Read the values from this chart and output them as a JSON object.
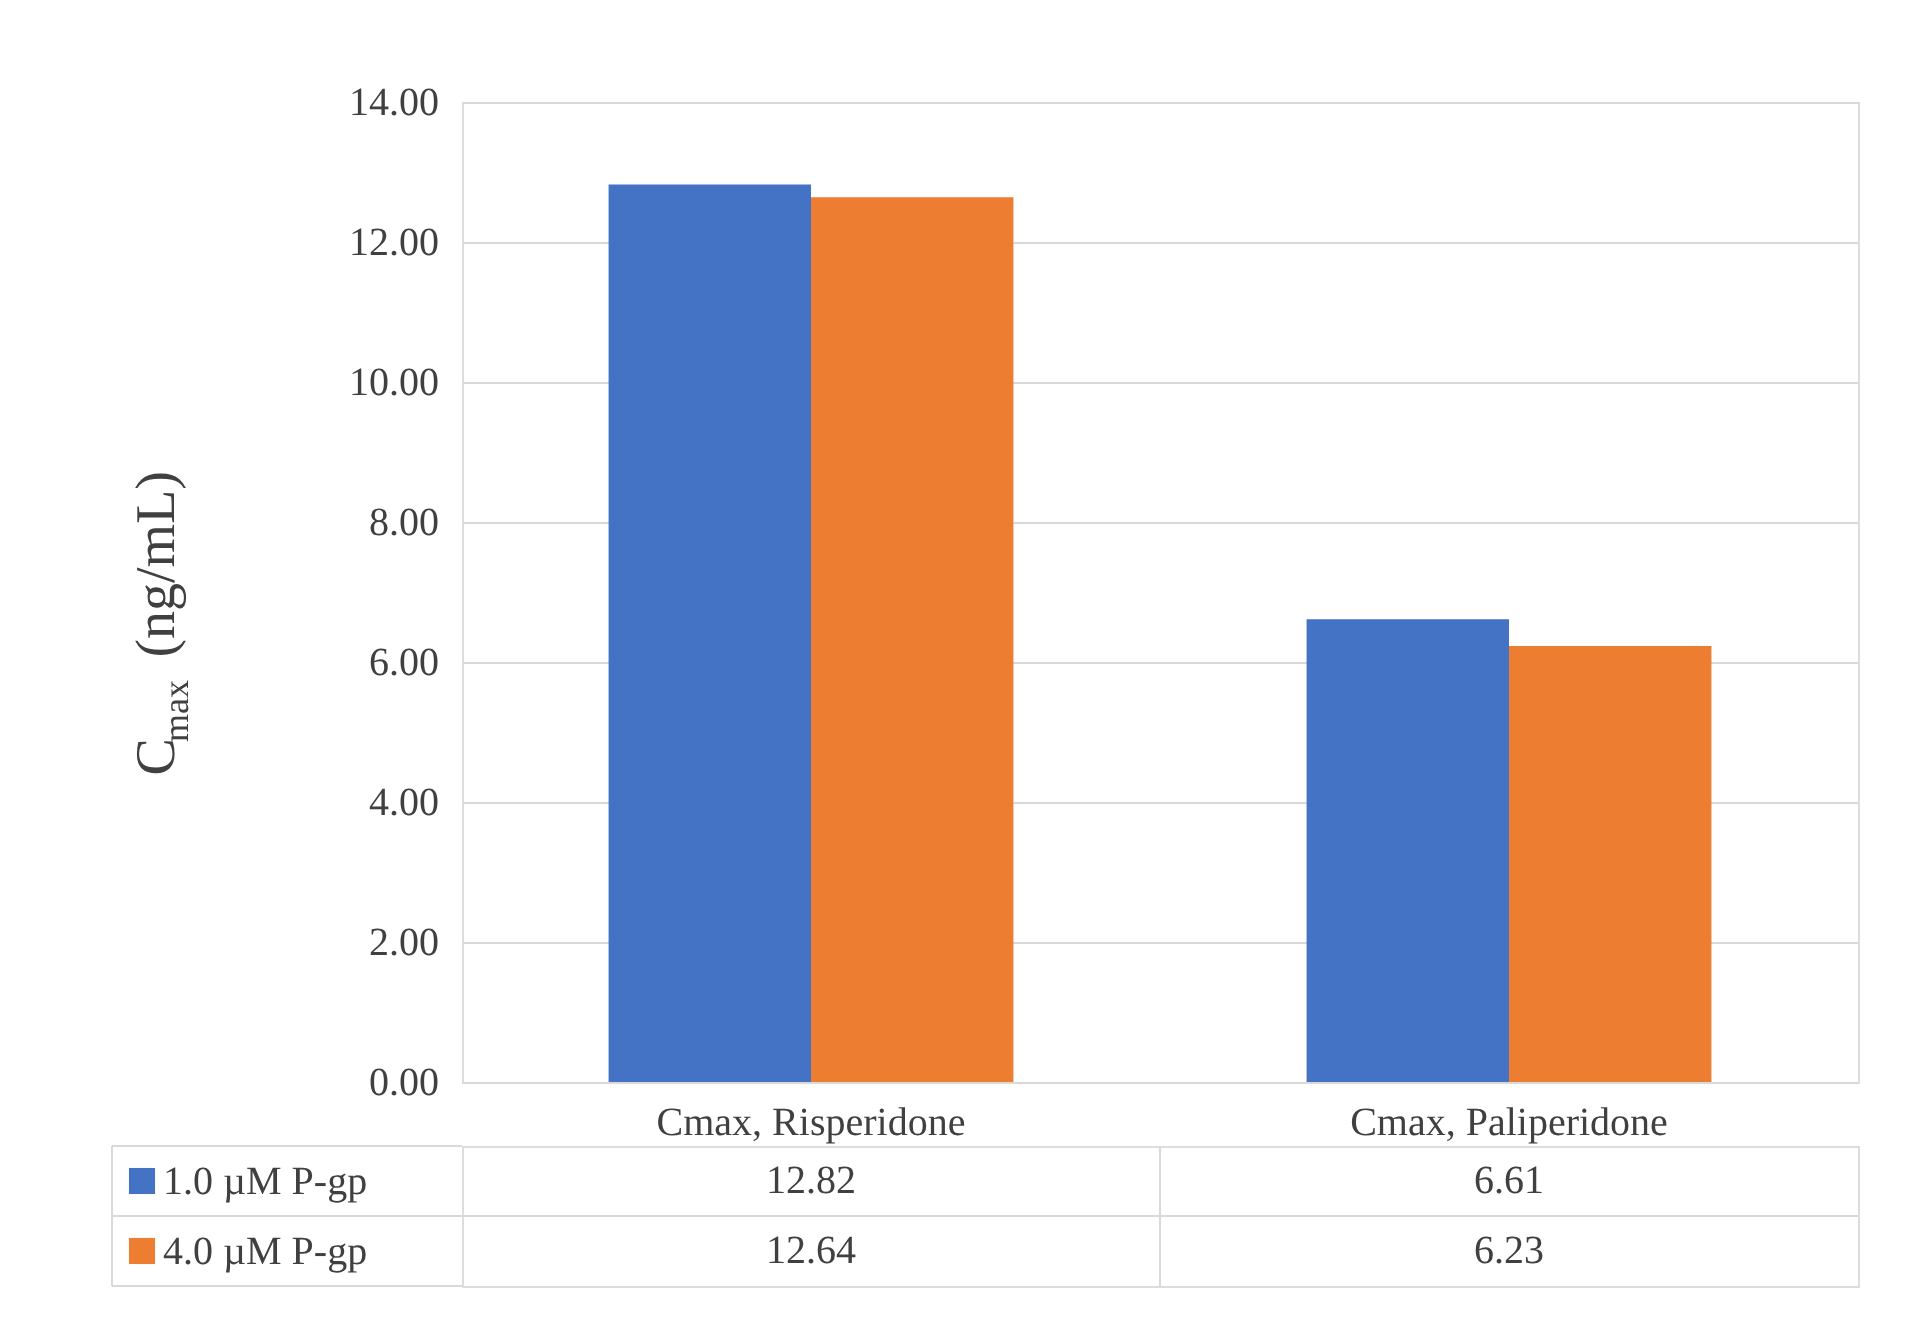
{
  "chart_data": {
    "type": "bar",
    "ylabel": "C$_{max}$ (ng/mL)",
    "categories": [
      "Cmax, Risperidone",
      "Cmax, Paliperidone"
    ],
    "series": [
      {
        "name": "1.0 µM P-gp",
        "color": "#4472c4",
        "values": [
          12.82,
          6.61
        ]
      },
      {
        "name": "4.0 µM P-gp",
        "color": "#ed7d31",
        "values": [
          12.64,
          6.23
        ]
      }
    ],
    "ylim": [
      0,
      14
    ],
    "yticks": [
      {
        "value": 0,
        "label": "0.00"
      },
      {
        "value": 2,
        "label": "2.00"
      },
      {
        "value": 4,
        "label": "4.00"
      },
      {
        "value": 6,
        "label": "6.00"
      },
      {
        "value": 8,
        "label": "8.00"
      },
      {
        "value": 10,
        "label": "10.00"
      },
      {
        "value": 12,
        "label": "12.00"
      },
      {
        "value": 14,
        "label": "14.00"
      }
    ],
    "grid": "y",
    "legend": "bottom",
    "data_labels": true
  }
}
